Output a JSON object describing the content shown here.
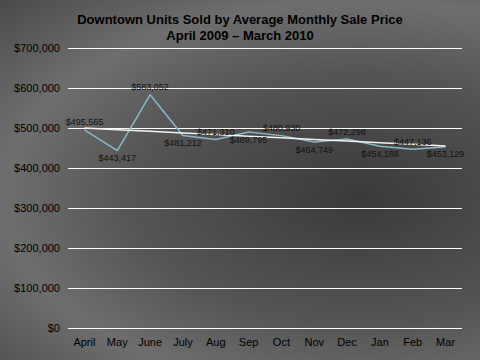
{
  "chart_data": {
    "type": "line",
    "title": "Downtown Units Sold by Average Monthly Sale Price",
    "subtitle": "April 2009 – March 2010",
    "categories": [
      "April",
      "May",
      "June",
      "July",
      "Aug",
      "Sep",
      "Oct",
      "Nov",
      "Dec",
      "Jan",
      "Feb",
      "Mar"
    ],
    "series": [
      {
        "color": "#8ab8c8",
        "values": [
          495565,
          443417,
          583052,
          481212,
          471310,
          489795,
          480930,
          464749,
          472298,
          454188,
          447136,
          453129
        ],
        "value_labels": [
          "$495,565",
          "$443,417",
          "$583,052",
          "$481,212",
          "$471,310",
          "$489,795",
          "$480,930",
          "$464,749",
          "$472,298",
          "$454,188",
          "$447,136",
          "$453,129"
        ],
        "data_labels": true
      },
      {
        "color": "#f2f2f2",
        "values": [
          500000,
          495900,
          491800,
          487700,
          483600,
          479500,
          475500,
          471400,
          467300,
          463200,
          459100,
          455000
        ],
        "data_labels": false
      }
    ],
    "ylim": [
      0,
      700000
    ],
    "yticks": [
      {
        "value": 0,
        "label": "$0"
      },
      {
        "value": 100000,
        "label": "$100,000"
      },
      {
        "value": 200000,
        "label": "$200,000"
      },
      {
        "value": 300000,
        "label": "$300,000"
      },
      {
        "value": 400000,
        "label": "$400,000"
      },
      {
        "value": 500000,
        "label": "$500,000"
      },
      {
        "value": 600000,
        "label": "$600,000"
      },
      {
        "value": 700000,
        "label": "$700,000"
      }
    ],
    "grid": true
  }
}
